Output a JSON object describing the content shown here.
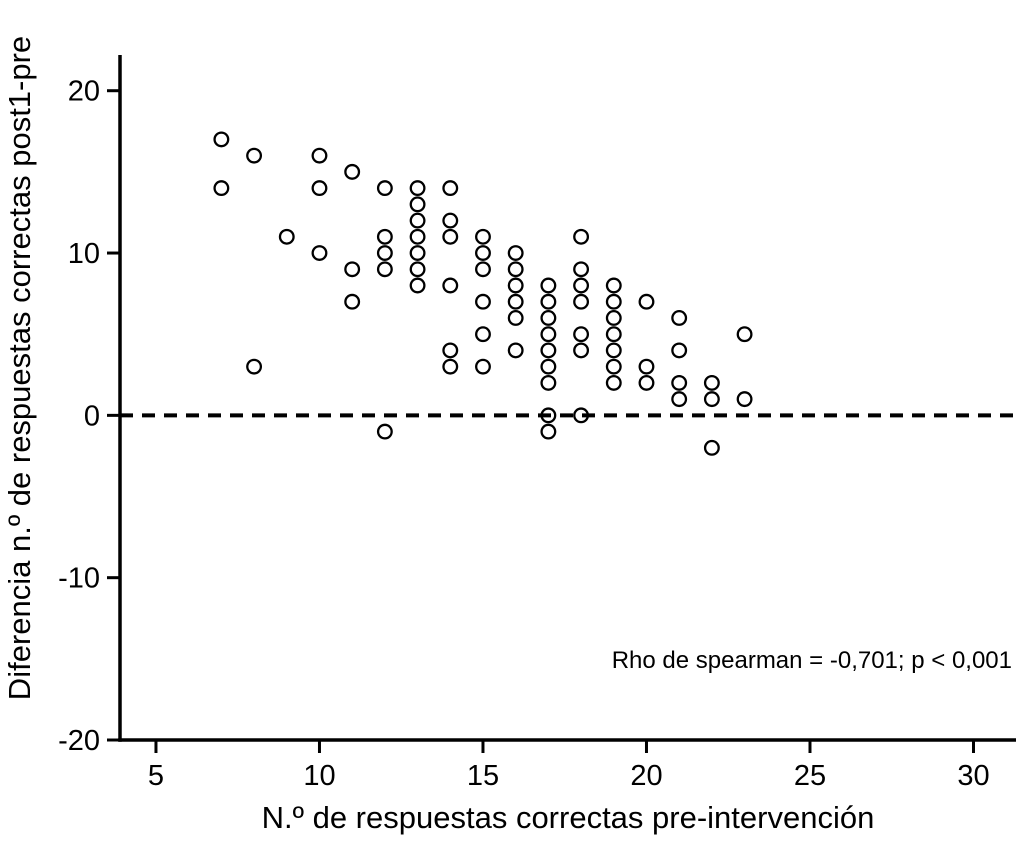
{
  "chart_data": {
    "type": "scatter",
    "title": "",
    "xlabel": "N.º de respuestas correctas pre-intervención",
    "ylabel": "Diferencia n.º de respuestas correctas post1-pre",
    "annotation": "Rho de spearman = -0,701; p < 0,001",
    "x_ticks": [
      5,
      10,
      15,
      20,
      25,
      30
    ],
    "y_ticks": [
      -20,
      -10,
      0,
      10,
      20
    ],
    "xlim": [
      3.9,
      31.3
    ],
    "ylim": [
      -20,
      22.2
    ],
    "reference_line_y": 0,
    "marker": "open-circle",
    "marker_color": "#000000",
    "grid": false,
    "legend": "none",
    "points": [
      [
        7,
        17
      ],
      [
        7,
        14
      ],
      [
        8,
        16
      ],
      [
        8,
        3
      ],
      [
        9,
        11
      ],
      [
        10,
        16
      ],
      [
        10,
        14
      ],
      [
        10,
        10
      ],
      [
        11,
        15
      ],
      [
        11,
        9
      ],
      [
        11,
        7
      ],
      [
        12,
        14
      ],
      [
        12,
        11
      ],
      [
        12,
        10
      ],
      [
        12,
        9
      ],
      [
        12,
        -1
      ],
      [
        13,
        14
      ],
      [
        13,
        13
      ],
      [
        13,
        12
      ],
      [
        13,
        11
      ],
      [
        13,
        10
      ],
      [
        13,
        9
      ],
      [
        13,
        8
      ],
      [
        14,
        14
      ],
      [
        14,
        12
      ],
      [
        14,
        11
      ],
      [
        14,
        8
      ],
      [
        14,
        4
      ],
      [
        14,
        3
      ],
      [
        15,
        11
      ],
      [
        15,
        10
      ],
      [
        15,
        9
      ],
      [
        15,
        7
      ],
      [
        15,
        5
      ],
      [
        15,
        3
      ],
      [
        16,
        10
      ],
      [
        16,
        9
      ],
      [
        16,
        8
      ],
      [
        16,
        7
      ],
      [
        16,
        6
      ],
      [
        16,
        4
      ],
      [
        17,
        8
      ],
      [
        17,
        7
      ],
      [
        17,
        6
      ],
      [
        17,
        5
      ],
      [
        17,
        4
      ],
      [
        17,
        3
      ],
      [
        17,
        2
      ],
      [
        17,
        0
      ],
      [
        17,
        -1
      ],
      [
        18,
        11
      ],
      [
        18,
        9
      ],
      [
        18,
        8
      ],
      [
        18,
        7
      ],
      [
        18,
        5
      ],
      [
        18,
        4
      ],
      [
        18,
        0
      ],
      [
        19,
        8
      ],
      [
        19,
        7
      ],
      [
        19,
        6
      ],
      [
        19,
        5
      ],
      [
        19,
        4
      ],
      [
        19,
        3
      ],
      [
        19,
        2
      ],
      [
        20,
        7
      ],
      [
        20,
        3
      ],
      [
        20,
        2
      ],
      [
        21,
        6
      ],
      [
        21,
        4
      ],
      [
        21,
        2
      ],
      [
        21,
        1
      ],
      [
        22,
        2
      ],
      [
        22,
        1
      ],
      [
        22,
        -2
      ],
      [
        23,
        5
      ],
      [
        23,
        1
      ]
    ]
  }
}
